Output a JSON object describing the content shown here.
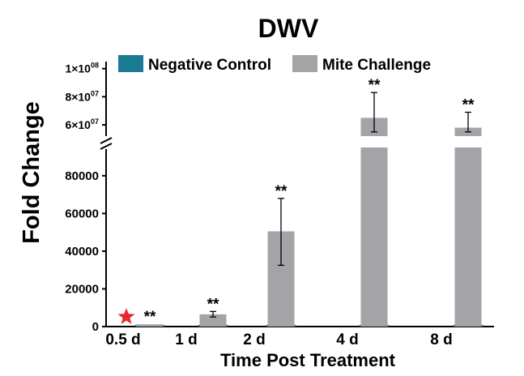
{
  "chart_data": {
    "type": "bar",
    "title": "DWV",
    "xlabel": "Time Post Treatment",
    "ylabel": "Fold Change",
    "categories": [
      "0.5 d",
      "1 d",
      "2 d",
      "4 d",
      "8 d"
    ],
    "y_axis_broken": true,
    "lower_ylim": [
      0,
      95000
    ],
    "lower_ticks": [
      "0",
      "20000",
      "40000",
      "60000",
      "80000"
    ],
    "upper_ticks": [
      {
        "mant": "1",
        "exp": "08",
        "value": 100000000
      },
      {
        "mant": "8",
        "exp": "07",
        "value": 80000000
      },
      {
        "mant": "6",
        "exp": "07",
        "value": 60000000
      }
    ],
    "series": [
      {
        "name": "Negative Control",
        "color": "#1b7a94",
        "values": [
          0,
          0,
          0,
          0,
          0
        ]
      },
      {
        "name": "Mite Challenge",
        "color": "#a3a3a8",
        "values": [
          1200,
          6500,
          50500,
          65000000,
          58000000
        ],
        "error_low": [
          1200,
          5100,
          32500,
          55000000,
          55000000
        ],
        "error_high": [
          1200,
          8000,
          68000,
          83000000,
          69000000
        ],
        "significance": [
          "**",
          "**",
          "**",
          "**",
          "**"
        ]
      }
    ],
    "annotation": "red-star-icon",
    "annotation_color": "#e8262c"
  }
}
